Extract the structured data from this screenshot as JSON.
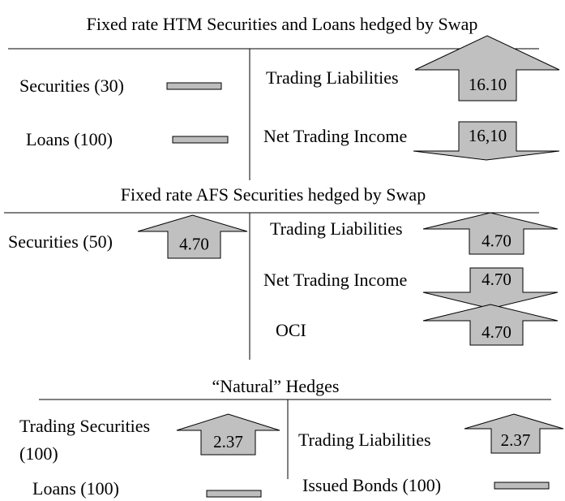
{
  "sections": [
    {
      "title": "Fixed rate HTM Securities and Loans hedged by Swap",
      "left": [
        {
          "label": "Securities (30)",
          "arrow": "flat"
        },
        {
          "label": "Loans (100)",
          "arrow": "flat"
        }
      ],
      "right": [
        {
          "label": "Trading Liabilities",
          "arrow": "up",
          "value": "16.10"
        },
        {
          "label": "Net Trading Income",
          "arrow": "down",
          "value": "16,10"
        }
      ]
    },
    {
      "title": "Fixed rate AFS Securities hedged by Swap",
      "left": [
        {
          "label": "Securities (50)",
          "arrow": "up",
          "value": "4.70"
        }
      ],
      "right": [
        {
          "label": "Trading Liabilities",
          "arrow": "up",
          "value": "4.70"
        },
        {
          "label": "Net Trading Income",
          "arrow": "down",
          "value": "4.70"
        },
        {
          "label": "OCI",
          "arrow": "up",
          "value": "4.70"
        }
      ]
    },
    {
      "title": "“Natural” Hedges",
      "left": [
        {
          "label": "Trading Securities (100)",
          "arrow": "up",
          "value": "2.37"
        },
        {
          "label": "Loans (100)",
          "arrow": "flat"
        }
      ],
      "right": [
        {
          "label": "Trading Liabilities",
          "arrow": "up",
          "value": "2.37"
        },
        {
          "label": "Issued Bonds (100)",
          "arrow": "flat"
        }
      ]
    }
  ]
}
